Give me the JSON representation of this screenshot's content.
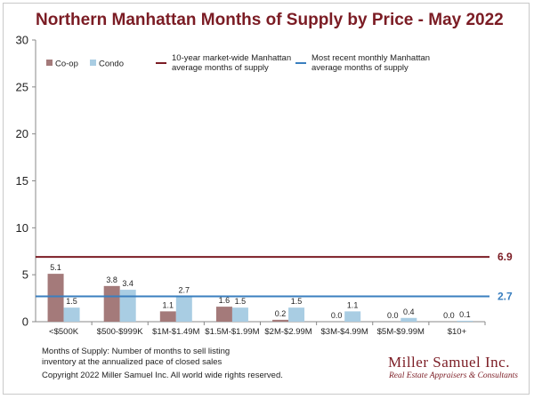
{
  "title": "Northern Manhattan Months of Supply by Price - May 2022",
  "colors": {
    "coop": "#a47a7a",
    "condo": "#a9cde3",
    "ref_10yr": "#7b1c24",
    "ref_recent": "#3a7fbf",
    "title": "#7b1c24"
  },
  "chart_data": {
    "type": "bar",
    "title": "Northern Manhattan Months of Supply by Price - May 2022",
    "categories": [
      "<$500K",
      "$500-$999K",
      "$1M-$1.49M",
      "$1.5M-$1.99M",
      "$2M-$2.99M",
      "$3M-$4.99M",
      "$5M-$9.99M",
      "$10+"
    ],
    "series": [
      {
        "name": "Co-op",
        "values": [
          5.1,
          3.8,
          1.1,
          1.6,
          0.2,
          0.0,
          0.0,
          0.0
        ],
        "labels": [
          "5.1",
          "3.8",
          "1.1",
          "1.6",
          "0.2",
          "0.0",
          "0.0",
          "0.0"
        ]
      },
      {
        "name": "Condo",
        "values": [
          1.5,
          3.4,
          2.7,
          1.5,
          1.5,
          1.1,
          0.4,
          0.1
        ],
        "labels": [
          "1.5",
          "3.4",
          "2.7",
          "1.5",
          "1.5",
          "1.1",
          "0.4",
          "0.1"
        ]
      }
    ],
    "reference_lines": [
      {
        "name": "10-year market-wide Manhattan average months of supply",
        "legend_lines": [
          "10-year market-wide Manhattan",
          "average months of supply"
        ],
        "value": 6.9,
        "label": "6.9"
      },
      {
        "name": "Most recent monthly Manhattan average months of supply",
        "legend_lines": [
          "Most recent monthly Manhattan",
          "average months of supply"
        ],
        "value": 2.7,
        "label": "2.7"
      }
    ],
    "ylim": [
      0,
      30
    ],
    "yticks": [
      0,
      5,
      10,
      15,
      20,
      25,
      30
    ],
    "xlabel": "",
    "ylabel": "",
    "grid": false
  },
  "footnote": {
    "definition_line1": "Months of Supply: Number of months to sell listing",
    "definition_line2": "inventory at the annualized pace of closed sales",
    "copyright": "Copyright 2022 Miller Samuel Inc.  All world wide rights reserved."
  },
  "logo": {
    "name": "Miller Samuel Inc.",
    "tagline": "Real Estate Appraisers & Consultants"
  }
}
